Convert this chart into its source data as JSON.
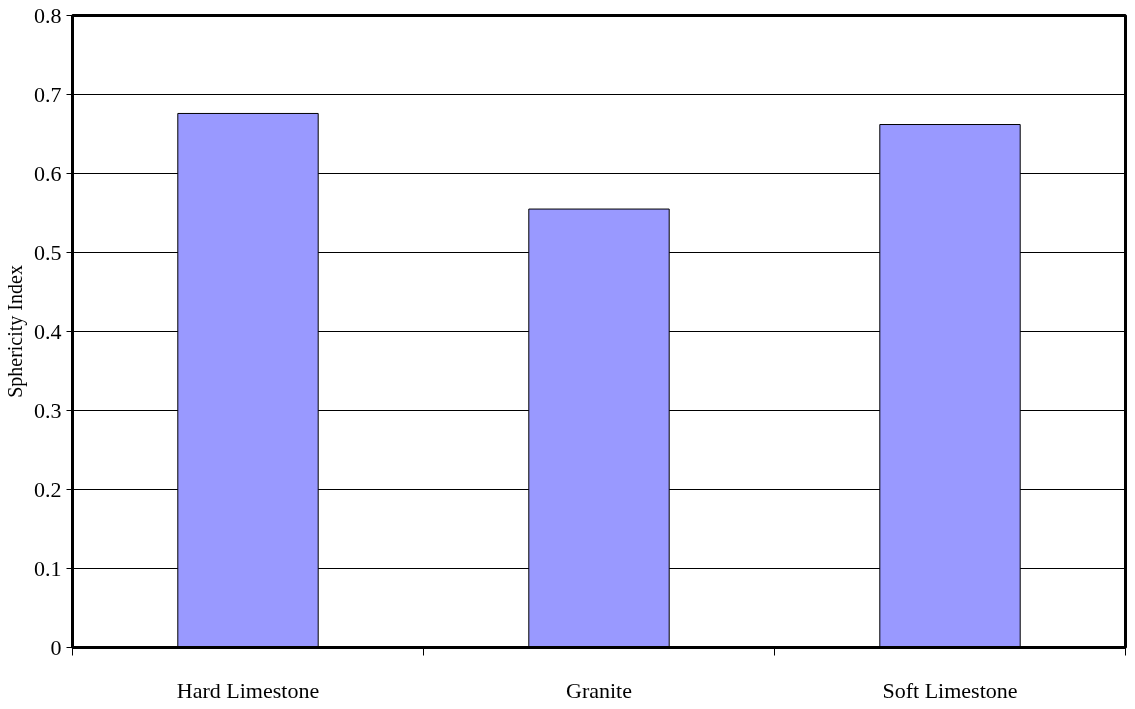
{
  "chart_data": {
    "type": "bar",
    "ylabel": "Sphericity Index",
    "categories": [
      "Hard Limestone",
      "Granite",
      "Soft Limestone"
    ],
    "values": [
      0.676,
      0.555,
      0.662
    ],
    "color": "#9999ff",
    "ylim": [
      0,
      0.8
    ],
    "yticks": [
      0,
      0.1,
      0.2,
      0.3,
      0.4,
      0.5,
      0.6,
      0.7,
      0.8
    ],
    "grid": "y"
  }
}
